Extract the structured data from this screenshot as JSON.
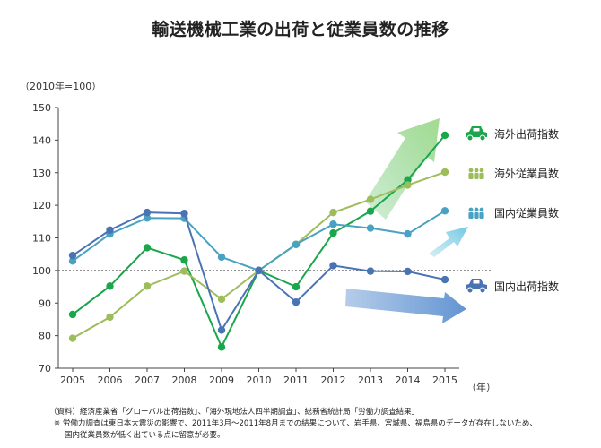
{
  "chart_data": {
    "type": "line",
    "title": "輸送機械工業の出荷と従業員数の推移",
    "unit_label": "（2010年=100）",
    "x_unit": "（年）",
    "x": [
      2005,
      2006,
      2007,
      2008,
      2009,
      2010,
      2011,
      2012,
      2013,
      2014,
      2015
    ],
    "ylim": [
      70,
      150
    ],
    "yticks": [
      70,
      80,
      90,
      100,
      110,
      120,
      130,
      140,
      150
    ],
    "reference_line": 100,
    "grid": false,
    "series": [
      {
        "name": "海外出荷指数",
        "color": "#1aa64a",
        "values": [
          86.5,
          95.2,
          107.0,
          103.2,
          76.5,
          100,
          95.0,
          111.5,
          118.2,
          127.8,
          141.5
        ]
      },
      {
        "name": "海外従業員数",
        "color": "#9dbd5b",
        "values": [
          79.2,
          85.7,
          95.2,
          99.8,
          91.2,
          100,
          108.0,
          117.8,
          121.8,
          126.2,
          130.2
        ]
      },
      {
        "name": "国内従業員数",
        "color": "#4aa2c2",
        "values": [
          102.9,
          111.2,
          116.1,
          116.0,
          104.1,
          100,
          108.0,
          114.2,
          113.0,
          111.2,
          118.3
        ]
      },
      {
        "name": "国内出荷指数",
        "color": "#4a73b4",
        "values": [
          104.6,
          112.4,
          117.8,
          117.5,
          81.7,
          100,
          90.3,
          101.5,
          99.8,
          99.7,
          97.2
        ]
      }
    ],
    "legend_position": "right"
  },
  "icons": {
    "overseas_shipping": "car-icon",
    "overseas_employees": "people-icon",
    "domestic_employees": "people-icon",
    "domestic_shipping": "car-icon"
  },
  "notes": {
    "source": "（資料）経済産業省「グローバル出荷指数」、「海外現地法人四半期調査」、総務省統計局「労働力調査結果」",
    "note1": "※ 労働力調査は東日本大震災の影響で、2011年3月～2011年8月までの結果について、岩手県、宮城県、福島県のデータが存在しないため、",
    "note2": "国内従業員数が低く出ている点に留意が必要。"
  }
}
